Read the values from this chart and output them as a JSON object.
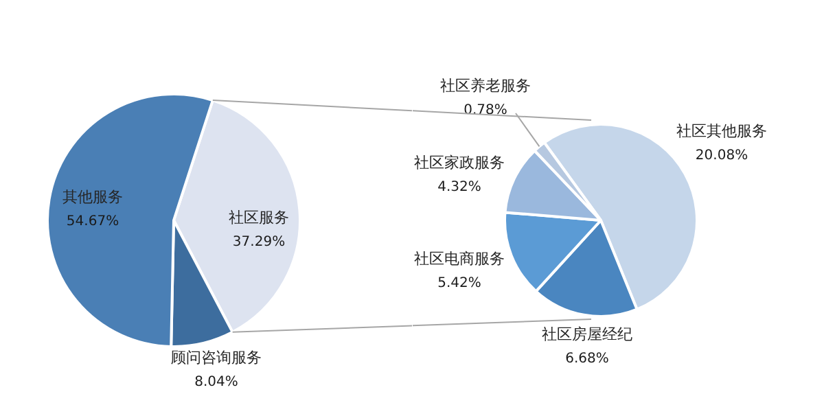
{
  "chart_data": [
    {
      "type": "pie",
      "categories": [
        "社区服务",
        "顾问咨询服务",
        "其他服务"
      ],
      "values": [
        37.29,
        8.04,
        54.67
      ],
      "colors": [
        "#dde3f0",
        "#3d6d9e",
        "#4a7fb5"
      ],
      "value_labels": [
        "37.29%",
        "8.04%",
        "54.67%"
      ]
    },
    {
      "type": "pie",
      "categories": [
        "社区其他服务",
        "社区房屋经纪",
        "社区电商服务",
        "社区家政服务",
        "社区养老服务"
      ],
      "values": [
        20.08,
        6.68,
        5.42,
        4.32,
        0.78
      ],
      "colors": [
        "#c5d6ea",
        "#4a86c0",
        "#5b9bd5",
        "#9ab8dd",
        "#b6c8e0"
      ],
      "value_labels": [
        "20.08%",
        "6.68%",
        "5.42%",
        "4.32%",
        "0.78%"
      ]
    }
  ]
}
